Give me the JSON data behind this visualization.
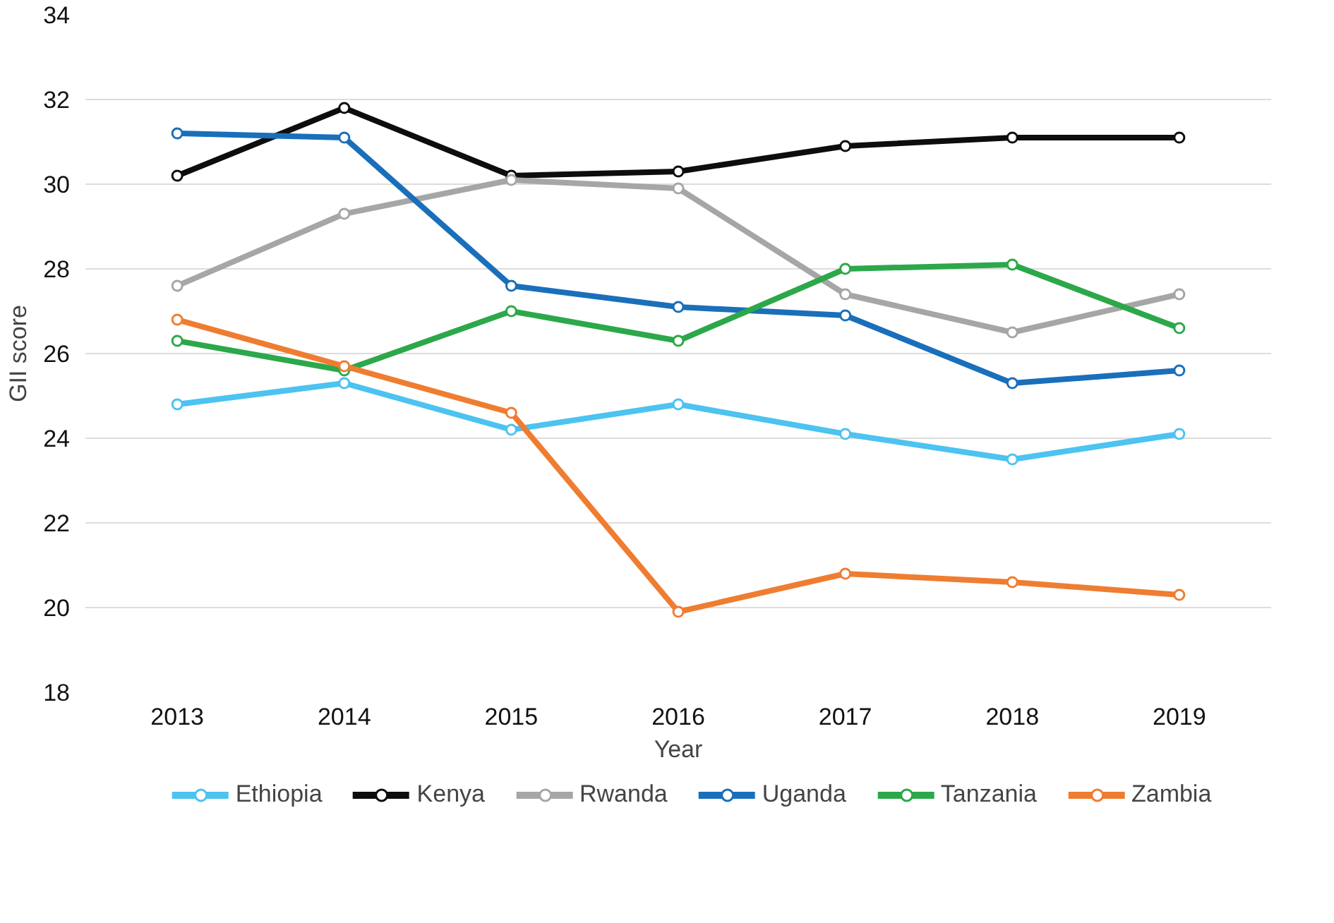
{
  "chart_data": {
    "type": "line",
    "xlabel": "Year",
    "ylabel": "GII score",
    "categories": [
      "2013",
      "2014",
      "2015",
      "2016",
      "2017",
      "2018",
      "2019"
    ],
    "ylim": [
      18,
      34
    ],
    "yticks": [
      18,
      20,
      22,
      24,
      26,
      28,
      30,
      32,
      34
    ],
    "grid": "y",
    "legend": "bottom",
    "marker": "circle",
    "line_style": "solid",
    "series": [
      {
        "name": "Ethiopia",
        "color": "#4cc3f0",
        "values": [
          24.8,
          25.3,
          24.2,
          24.8,
          24.1,
          23.5,
          24.1
        ]
      },
      {
        "name": "Kenya",
        "color": "#0d0d0d",
        "values": [
          30.2,
          31.8,
          30.2,
          30.3,
          30.9,
          31.1,
          31.1
        ]
      },
      {
        "name": "Rwanda",
        "color": "#a6a6a6",
        "values": [
          27.6,
          29.3,
          30.1,
          29.9,
          27.4,
          26.5,
          27.4
        ]
      },
      {
        "name": "Uganda",
        "color": "#1a6fba",
        "values": [
          31.2,
          31.1,
          27.6,
          27.1,
          26.9,
          25.3,
          25.6
        ]
      },
      {
        "name": "Tanzania",
        "color": "#2ca84a",
        "values": [
          26.3,
          25.6,
          27.0,
          26.3,
          28.0,
          28.1,
          26.6
        ]
      },
      {
        "name": "Zambia",
        "color": "#ef7d31",
        "values": [
          26.8,
          25.7,
          24.6,
          19.9,
          20.8,
          20.6,
          20.3
        ]
      }
    ]
  }
}
